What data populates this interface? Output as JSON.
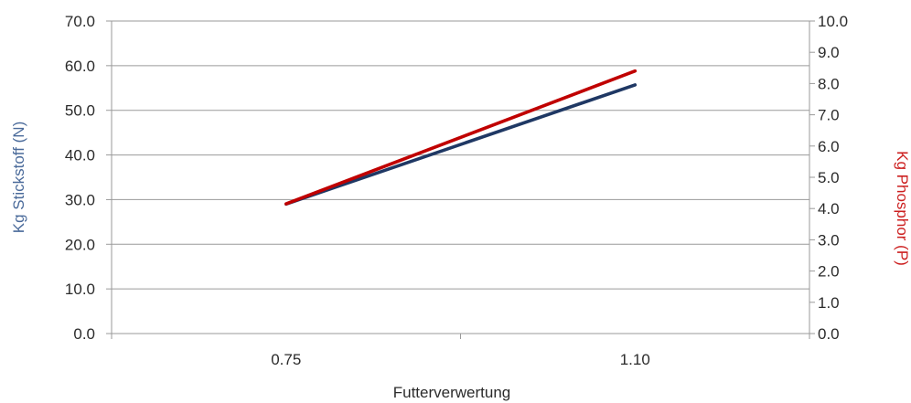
{
  "chart_data": {
    "type": "line",
    "title": "",
    "categories": [
      "0.75",
      "1.10"
    ],
    "xlabel": "Futterverwertung",
    "y_left": {
      "label": "Kg Stickstoff (N)",
      "lim": [
        0,
        70
      ],
      "ticks": [
        "0.0",
        "10.0",
        "20.0",
        "30.0",
        "40.0",
        "50.0",
        "60.0",
        "70.0"
      ],
      "color": "#4a6a9a"
    },
    "y_right": {
      "label": "Kg Phosphor (P)",
      "lim": [
        0,
        10
      ],
      "ticks": [
        "0.0",
        "1.0",
        "2.0",
        "3.0",
        "4.0",
        "5.0",
        "6.0",
        "7.0",
        "8.0",
        "9.0",
        "10.0"
      ],
      "color": "#cc1f1f"
    },
    "series": [
      {
        "axis": "left",
        "color": "#1f3864",
        "values": [
          29.0,
          55.7
        ]
      },
      {
        "axis": "right",
        "color": "#c00000",
        "values": [
          4.15,
          8.4
        ]
      }
    ],
    "grid": true
  }
}
